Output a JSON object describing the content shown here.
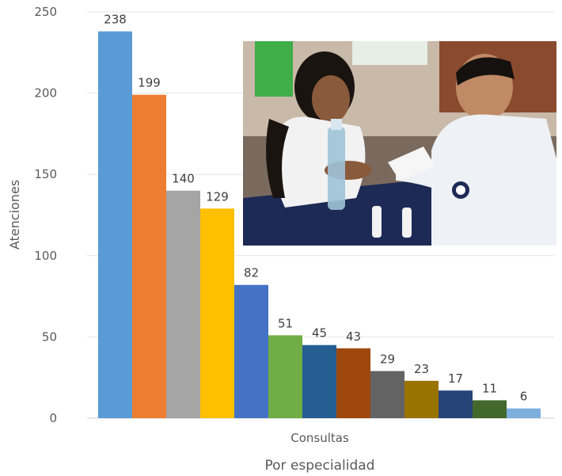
{
  "chart_data": {
    "type": "bar",
    "categories": [
      "Consultas"
    ],
    "series": [
      {
        "values": [
          238
        ],
        "color": "#5b9bd5"
      },
      {
        "values": [
          199
        ],
        "color": "#ed7d31"
      },
      {
        "values": [
          140
        ],
        "color": "#a5a5a5"
      },
      {
        "values": [
          129
        ],
        "color": "#ffc000"
      },
      {
        "values": [
          82
        ],
        "color": "#4472c4"
      },
      {
        "values": [
          51
        ],
        "color": "#70ad47"
      },
      {
        "values": [
          45
        ],
        "color": "#255e91"
      },
      {
        "values": [
          43
        ],
        "color": "#9e480e"
      },
      {
        "values": [
          29
        ],
        "color": "#636363"
      },
      {
        "values": [
          23
        ],
        "color": "#997300"
      },
      {
        "values": [
          17
        ],
        "color": "#264478"
      },
      {
        "values": [
          11
        ],
        "color": "#43682b"
      },
      {
        "values": [
          6
        ],
        "color": "#7cafdd"
      }
    ],
    "xlabel": "Por especialidad",
    "ylabel": "Atenciones",
    "ylim": [
      0,
      250
    ],
    "yticks": [
      0,
      50,
      100,
      150,
      200,
      250
    ],
    "grid": true,
    "legend": "none"
  },
  "photo": {
    "description_icon": "photo-doctor-consultation"
  }
}
